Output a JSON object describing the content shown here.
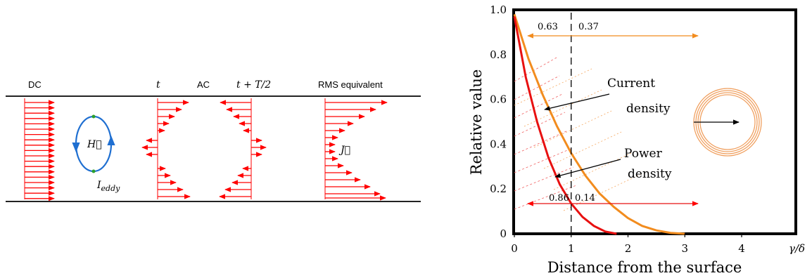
{
  "left_diagram": {
    "labels": {
      "dc": "DC",
      "t": "t",
      "ac": "AC",
      "t_half": "t + T/2",
      "rms": "RMS equivalent",
      "h_vector": "H⃗",
      "i_eddy": "I",
      "i_eddy_sub": "eddy",
      "j_vector": "J⃗"
    },
    "colors": {
      "arrow": "#ff0000",
      "loop": "#1f6fd1",
      "loop_marker": "#2ca02c",
      "wire": "#000000"
    }
  },
  "chart_data": {
    "type": "line",
    "title": "",
    "xlabel": "Distance from the surface",
    "xlabel_short": "γ/δ",
    "ylabel": "Relative value",
    "xlim": [
      0,
      4
    ],
    "ylim": [
      0,
      1
    ],
    "x_ticks": [
      "0",
      "1",
      "2",
      "3",
      "4"
    ],
    "y_ticks": [
      "0",
      "0.2",
      "0.4",
      "0.6",
      "0.8",
      "1.0"
    ],
    "series": [
      {
        "name": "Current density",
        "color": "#f28c1e",
        "x": [
          0,
          0.25,
          0.5,
          0.75,
          1,
          1.25,
          1.5,
          1.75,
          2,
          2.25,
          2.5,
          2.75,
          3
        ],
        "y": [
          0.98,
          0.78,
          0.62,
          0.48,
          0.36,
          0.26,
          0.18,
          0.12,
          0.07,
          0.035,
          0.015,
          0.004,
          0
        ]
      },
      {
        "name": "Power density",
        "color": "#e81010",
        "x": [
          0,
          0.2,
          0.4,
          0.6,
          0.8,
          1,
          1.2,
          1.4,
          1.6,
          1.8
        ],
        "y": [
          0.97,
          0.7,
          0.5,
          0.34,
          0.22,
          0.135,
          0.075,
          0.035,
          0.01,
          0
        ]
      }
    ],
    "annotations": {
      "current_label_1": "Current",
      "current_label_2": "density",
      "power_label_1": "Power",
      "power_label_2": "density",
      "orange_left": "0.63",
      "orange_right": "0.37",
      "red_left": "0.86",
      "red_right": "0.14"
    },
    "reference_line_x": 1,
    "grid": false
  }
}
